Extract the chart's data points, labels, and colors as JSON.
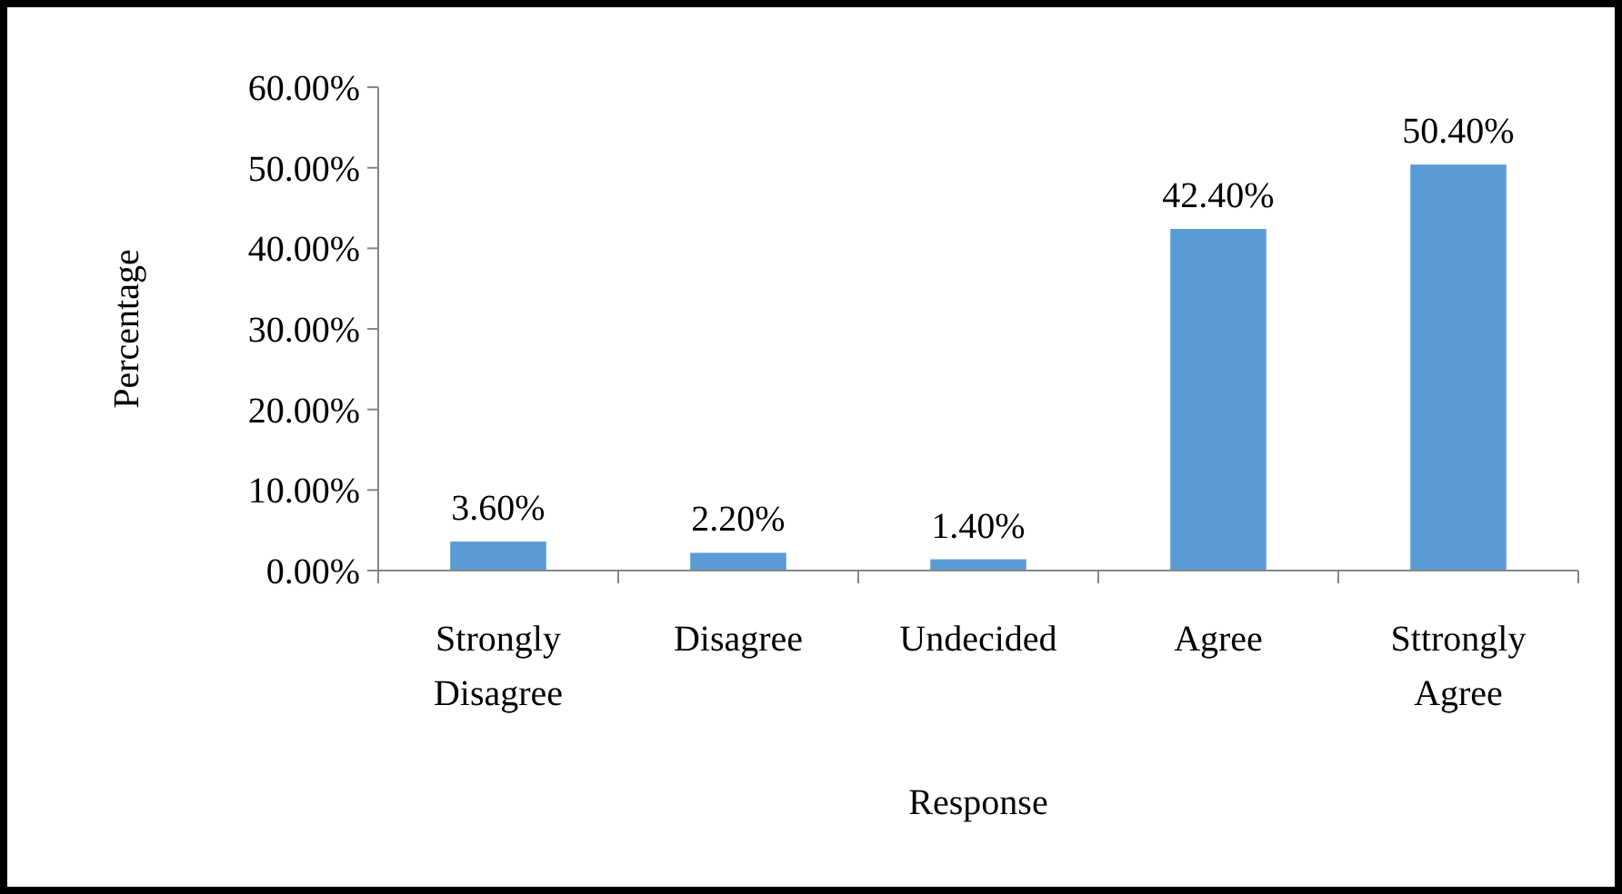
{
  "chart_data": {
    "type": "bar",
    "xlabel": "Response",
    "ylabel": "Percentage",
    "categories": [
      "Strongly Disagree",
      "Disagree",
      "Undecided",
      "Agree",
      "Sttrongly Agree"
    ],
    "values": [
      3.6,
      2.2,
      1.4,
      42.4,
      50.4
    ],
    "value_labels": [
      "3.60%",
      "2.20%",
      "1.40%",
      "42.40%",
      "50.40%"
    ],
    "color": "#5b9bd5",
    "ylim": [
      0,
      60
    ],
    "yticks": [
      {
        "value": 0,
        "label": "0.00%"
      },
      {
        "value": 10,
        "label": "10.00%"
      },
      {
        "value": 20,
        "label": "20.00%"
      },
      {
        "value": 30,
        "label": "30.00%"
      },
      {
        "value": 40,
        "label": "40.00%"
      },
      {
        "value": 50,
        "label": "50.00%"
      },
      {
        "value": 60,
        "label": "60.00%"
      }
    ],
    "grid": false
  }
}
